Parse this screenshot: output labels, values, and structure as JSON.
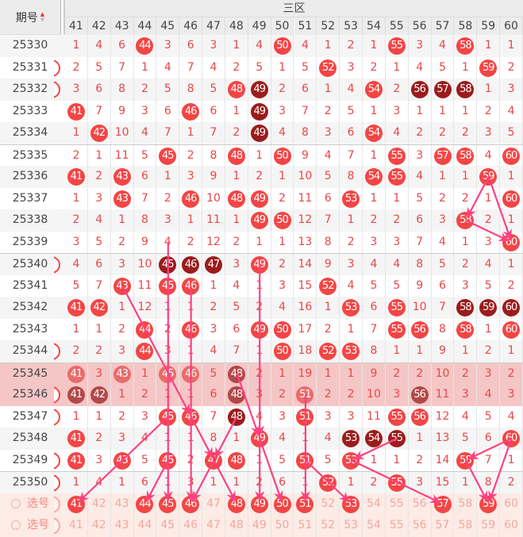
{
  "header": {
    "period_label": "期号",
    "zone_label": "三区",
    "sort_icon": "sort-up-down-icon"
  },
  "columns": [
    41,
    42,
    43,
    44,
    45,
    46,
    47,
    48,
    49,
    50,
    51,
    52,
    53,
    54,
    55,
    56,
    57,
    58,
    59,
    60
  ],
  "colors": {
    "ball": "#f44545",
    "ball_dark": "#9b1c1c",
    "miss_text": "#e8474a",
    "arrow": "#ff4081",
    "highlight_row": "#f5c6c6",
    "select_row": "#fdebe6"
  },
  "rows": [
    {
      "period": "25330",
      "edge": false,
      "cells": [
        1,
        4,
        6,
        "44",
        3,
        6,
        3,
        1,
        4,
        "50",
        4,
        1,
        2,
        1,
        "55",
        3,
        4,
        "58",
        1,
        1
      ]
    },
    {
      "period": "25331",
      "edge": true,
      "cells": [
        2,
        5,
        7,
        1,
        4,
        7,
        4,
        2,
        5,
        1,
        5,
        "52",
        3,
        2,
        1,
        4,
        5,
        1,
        "59",
        2
      ]
    },
    {
      "period": "25332",
      "edge": true,
      "cells": [
        3,
        6,
        8,
        2,
        5,
        8,
        5,
        "48",
        "d49",
        2,
        6,
        1,
        4,
        "54",
        2,
        "d56",
        "d57",
        "d58",
        1,
        3
      ]
    },
    {
      "period": "25333",
      "edge": false,
      "cells": [
        "41",
        7,
        9,
        3,
        6,
        "46",
        6,
        1,
        "d49",
        3,
        7,
        2,
        5,
        1,
        3,
        1,
        1,
        1,
        2,
        4
      ]
    },
    {
      "period": "25334",
      "edge": false,
      "cells": [
        1,
        "42",
        10,
        4,
        7,
        1,
        7,
        2,
        "d49",
        4,
        8,
        3,
        6,
        "54",
        4,
        2,
        2,
        2,
        3,
        5
      ]
    },
    {
      "period": "25335",
      "edge": false,
      "cells": [
        2,
        1,
        11,
        5,
        "45",
        2,
        8,
        "48",
        1,
        "50",
        9,
        4,
        7,
        1,
        "55",
        3,
        "57",
        "58",
        4,
        "60"
      ]
    },
    {
      "period": "25336",
      "edge": false,
      "cells": [
        "41",
        2,
        "43",
        6,
        1,
        3,
        9,
        1,
        2,
        1,
        10,
        5,
        8,
        "54",
        "55",
        4,
        1,
        1,
        "59",
        1
      ]
    },
    {
      "period": "25337",
      "edge": false,
      "cells": [
        1,
        3,
        "43",
        7,
        2,
        "46",
        10,
        "48",
        "49",
        2,
        11,
        6,
        "53",
        1,
        1,
        5,
        2,
        2,
        1,
        "60"
      ]
    },
    {
      "period": "25338",
      "edge": false,
      "cells": [
        2,
        4,
        1,
        8,
        3,
        1,
        11,
        1,
        "49",
        "50",
        12,
        7,
        1,
        2,
        2,
        6,
        3,
        "58",
        2,
        1
      ]
    },
    {
      "period": "25339",
      "edge": false,
      "cells": [
        3,
        5,
        2,
        9,
        4,
        2,
        12,
        2,
        1,
        1,
        13,
        8,
        2,
        3,
        3,
        7,
        4,
        1,
        3,
        "60"
      ]
    },
    {
      "period": "25340",
      "edge": true,
      "cells": [
        4,
        6,
        3,
        10,
        "d45",
        "d46",
        "d47",
        3,
        "49",
        2,
        14,
        9,
        3,
        4,
        4,
        8,
        5,
        2,
        4,
        1
      ]
    },
    {
      "period": "25341",
      "edge": false,
      "cells": [
        5,
        7,
        "43",
        11,
        "45",
        "46",
        1,
        4,
        1,
        3,
        15,
        "52",
        4,
        5,
        5,
        9,
        6,
        3,
        5,
        2
      ]
    },
    {
      "period": "25342",
      "edge": false,
      "cells": [
        "41",
        "42",
        1,
        12,
        1,
        1,
        2,
        5,
        2,
        4,
        16,
        1,
        "53",
        6,
        "55",
        10,
        7,
        "d58",
        "d59",
        "d60"
      ]
    },
    {
      "period": "25343",
      "edge": false,
      "cells": [
        1,
        1,
        2,
        "44",
        2,
        "46",
        3,
        6,
        "49",
        "50",
        17,
        2,
        1,
        7,
        "55",
        "56",
        8,
        "58",
        1,
        "60"
      ]
    },
    {
      "period": "25344",
      "edge": true,
      "cells": [
        2,
        2,
        3,
        "44",
        3,
        1,
        4,
        7,
        1,
        "50",
        18,
        "52",
        "53",
        8,
        1,
        1,
        9,
        1,
        2,
        1
      ]
    },
    {
      "period": "25345",
      "edge": false,
      "highlight": true,
      "cells": [
        "41",
        3,
        "43",
        1,
        "45",
        "46",
        5,
        "d48",
        2,
        1,
        19,
        1,
        1,
        9,
        2,
        2,
        10,
        2,
        3,
        2
      ]
    },
    {
      "period": "25346",
      "edge": true,
      "highlight": true,
      "cells": [
        "d41",
        "d42",
        1,
        2,
        1,
        1,
        6,
        "d48",
        3,
        2,
        "51",
        2,
        2,
        10,
        3,
        "d56",
        11,
        3,
        4,
        3
      ]
    },
    {
      "period": "25347",
      "edge": true,
      "cells": [
        1,
        1,
        2,
        3,
        "45",
        "46",
        7,
        "d48",
        4,
        3,
        "51",
        3,
        3,
        11,
        "55",
        "56",
        12,
        4,
        5,
        4
      ]
    },
    {
      "period": "25348",
      "edge": false,
      "cells": [
        "41",
        2,
        3,
        4,
        1,
        1,
        8,
        1,
        "49",
        4,
        1,
        4,
        "d53",
        "d54",
        "d55",
        1,
        13,
        5,
        6,
        "60"
      ]
    },
    {
      "period": "25349",
      "edge": true,
      "cells": [
        "41",
        3,
        "43",
        5,
        "45",
        2,
        "47",
        "48",
        1,
        5,
        "51",
        5,
        "53",
        1,
        1,
        2,
        14,
        "58",
        7,
        1
      ]
    },
    {
      "period": "25350",
      "edge": true,
      "cells": [
        1,
        4,
        1,
        6,
        1,
        3,
        1,
        1,
        2,
        6,
        1,
        "52",
        1,
        2,
        "55",
        3,
        15,
        1,
        8,
        2
      ]
    }
  ],
  "select_rows": [
    {
      "label": "选号",
      "selected": [
        41,
        44,
        45,
        46,
        48,
        49,
        50,
        51,
        53,
        57,
        59
      ]
    },
    {
      "label": "选号",
      "selected": []
    }
  ],
  "arrows": [
    [
      "25336",
      59,
      "25338",
      58
    ],
    [
      "25336",
      59,
      "25339",
      60
    ],
    [
      "25338",
      58,
      "25339",
      60
    ],
    [
      "25339",
      45,
      "select",
      45
    ],
    [
      "25341",
      46,
      "select",
      46
    ],
    [
      "25340",
      49,
      "25348",
      49
    ],
    [
      "25348",
      49,
      "select",
      49
    ],
    [
      "25348",
      49,
      "select",
      50
    ],
    [
      "25341",
      43,
      "25347",
      46
    ],
    [
      "25347",
      46,
      "25349",
      47
    ],
    [
      "25349",
      47,
      "select",
      48
    ],
    [
      "25347",
      45,
      "select",
      41
    ],
    [
      "25349",
      45,
      "select",
      44
    ],
    [
      "25347",
      48,
      "25349",
      47
    ],
    [
      "25349",
      47,
      "select",
      46
    ],
    [
      "25345",
      48,
      "25348",
      49
    ],
    [
      "25346",
      51,
      "select",
      51
    ],
    [
      "25349",
      51,
      "select",
      53
    ],
    [
      "25348",
      55,
      "25349",
      53
    ],
    [
      "25349",
      53,
      "select",
      57
    ],
    [
      "25348",
      60,
      "25349",
      58
    ],
    [
      "25348",
      60,
      "select",
      59
    ],
    [
      "25349",
      58,
      "select",
      59
    ]
  ]
}
